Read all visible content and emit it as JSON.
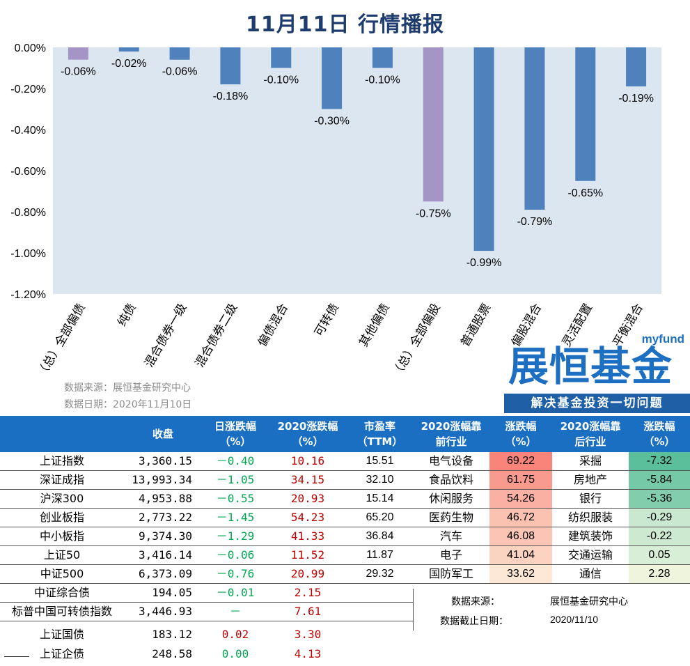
{
  "header": {
    "title": "11月11日  行情播报"
  },
  "chart_data": {
    "type": "bar",
    "categories": [
      "（总）全部偏债",
      "纯债",
      "混合债券一级",
      "混合债券二级",
      "偏债混合",
      "可转债",
      "其他偏债",
      "（总）全部偏股",
      "普通股票",
      "偏股混合",
      "灵活配置",
      "平衡混合"
    ],
    "values": [
      -0.06,
      -0.02,
      -0.06,
      -0.18,
      -0.1,
      -0.3,
      -0.1,
      -0.75,
      -0.99,
      -0.79,
      -0.65,
      -0.19
    ],
    "data_labels": [
      "-0.06%",
      "-0.02%",
      "-0.06%",
      "-0.18%",
      "-0.10%",
      "-0.30%",
      "-0.10%",
      "-0.75%",
      "-0.99%",
      "-0.79%",
      "-0.65%",
      "-0.19%"
    ],
    "highlight_categories": [
      "（总）全部偏债",
      "（总）全部偏股"
    ],
    "yticks": [
      "0.00%",
      "-0.20%",
      "-0.40%",
      "-0.60%",
      "-0.80%",
      "-1.00%",
      "-1.20%"
    ],
    "ylim": [
      -1.2,
      0
    ],
    "grid": false,
    "colors": {
      "bar": "#4f81bd",
      "highlight": "#a595c6",
      "plot_bg": "#dce6f1"
    }
  },
  "source": {
    "line1": "数据来源：展恒基金研究中心",
    "line2": "数据日期：2020年11月10日"
  },
  "logo": {
    "latin": "myfund",
    "cn": "展恒基金",
    "slogan": "解决基金投资一切问题"
  },
  "left_table": {
    "headers": [
      "",
      "收盘",
      "日涨跌幅\n（%）",
      "2020涨跌幅\n（%）",
      "市盈率\n（TTM）"
    ],
    "rows": [
      {
        "name": "上证指数",
        "close": "3,360.15",
        "day": "－0.40",
        "ytd": "10.16",
        "pe": "15.51"
      },
      {
        "name": "深证成指",
        "close": "13,993.34",
        "day": "－1.05",
        "ytd": "34.15",
        "pe": "32.10"
      },
      {
        "name": "沪深300",
        "close": "4,953.88",
        "day": "－0.55",
        "ytd": "20.93",
        "pe": "15.14"
      },
      {
        "name": "创业板指",
        "close": "2,773.22",
        "day": "－1.45",
        "ytd": "54.23",
        "pe": "65.20"
      },
      {
        "name": "中小板指",
        "close": "9,374.30",
        "day": "－1.29",
        "ytd": "41.33",
        "pe": "36.84"
      },
      {
        "name": "上证50",
        "close": "3,416.14",
        "day": "－0.06",
        "ytd": "11.52",
        "pe": "11.87"
      },
      {
        "name": "中证500",
        "close": "6,373.09",
        "day": "－0.76",
        "ytd": "20.99",
        "pe": "29.32"
      },
      {
        "name": "中证综合债",
        "close": "194.05",
        "day": "－0.01",
        "ytd": "2.15",
        "pe": ""
      },
      {
        "name": "标普中国可转债指数",
        "close": "3,446.93",
        "day": "－",
        "ytd": "7.61",
        "pe": ""
      }
    ],
    "bottom_rows": [
      {
        "name": "上证国债",
        "close": "183.12",
        "day": "0.02",
        "ytd": "3.30"
      },
      {
        "name": "上证企债",
        "close": "248.58",
        "day": "0.00",
        "ytd": "4.13"
      }
    ]
  },
  "right_table": {
    "headers": [
      "2020涨幅靠\n前行业",
      "涨跌幅\n（%）",
      "2020涨幅靠\n后行业",
      "涨跌幅\n（%）"
    ],
    "rows": [
      {
        "top": "电气设备",
        "top_val": "69.22",
        "top_bg": "#f8847a",
        "bot": "采掘",
        "bot_val": "-7.32",
        "bot_bg": "#5bbf9b"
      },
      {
        "top": "食品饮料",
        "top_val": "61.75",
        "top_bg": "#f99a8f",
        "bot": "房地产",
        "bot_val": "-5.84",
        "bot_bg": "#76c9a6"
      },
      {
        "top": "休闲服务",
        "top_val": "54.26",
        "top_bg": "#fab0a3",
        "bot": "银行",
        "bot_val": "-5.36",
        "bot_bg": "#82cdab"
      },
      {
        "top": "医药生物",
        "top_val": "46.72",
        "top_bg": "#fbc2b2",
        "bot": "纺织服装",
        "bot_val": "-0.29",
        "bot_bg": "#cae8cf"
      },
      {
        "top": "汽车",
        "top_val": "46.08",
        "top_bg": "#fbc4b4",
        "bot": "建筑装饰",
        "bot_val": "-0.22",
        "bot_bg": "#cde9d0"
      },
      {
        "top": "电子",
        "top_val": "41.04",
        "top_bg": "#fcd3c0",
        "bot": "交通运输",
        "bot_val": "0.05",
        "bot_bg": "#d9eed7"
      },
      {
        "top": "国防军工",
        "top_val": "33.62",
        "top_bg": "#fde8d6",
        "bot": "通信",
        "bot_val": "2.28",
        "bot_bg": "#eef5dc"
      }
    ],
    "footer": {
      "src_label": "数据来源：",
      "src_value": "展恒基金研究中心",
      "date_label": "数据截止日期：",
      "date_value": "2020/11/10"
    }
  }
}
